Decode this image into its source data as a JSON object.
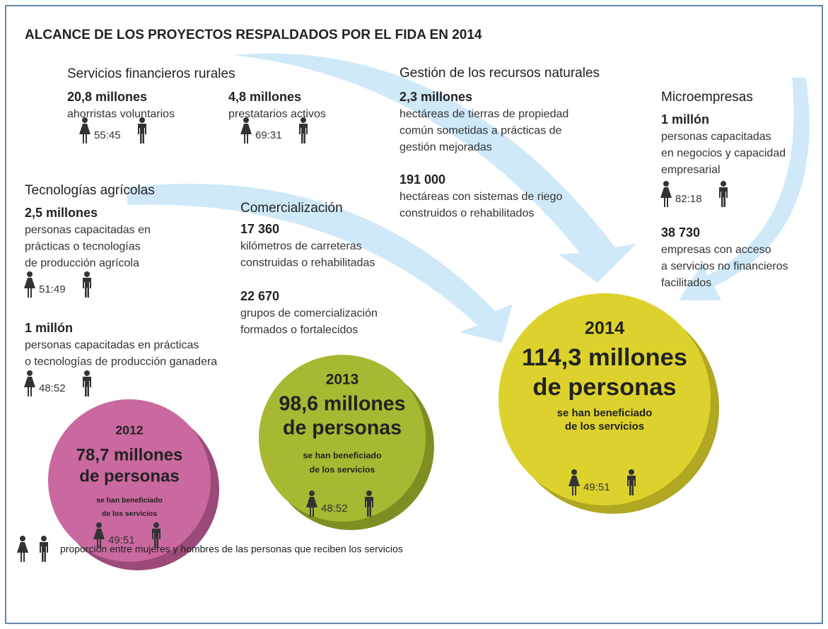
{
  "title": "ALCANCE DE LOS PROYECTOS RESPALDADOS POR EL FIDA EN 2014",
  "sections": [
    {
      "heading": "Servicios financieros rurales",
      "items": [
        {
          "figure": "20,8 millones",
          "description": [
            "ahorristas voluntarios"
          ],
          "ratio": "55:45"
        },
        {
          "figure": "4,8 millones",
          "description": [
            "prestatarios activos"
          ],
          "ratio": "69:31"
        }
      ]
    },
    {
      "heading": "Gestión de los recursos naturales",
      "items": [
        {
          "figure": "2,3 millones",
          "description": [
            "hectáreas de tierras de propiedad",
            "común sometidas a prácticas de",
            "gestión mejoradas"
          ]
        },
        {
          "figure": "191 000",
          "description": [
            "hectáreas con sistemas de riego",
            "construidos o rehabilitados"
          ]
        }
      ]
    },
    {
      "heading": "Microempresas",
      "items": [
        {
          "figure": "1 millón",
          "description": [
            "personas capacitadas",
            "en negocios y capacidad",
            "empresarial"
          ],
          "ratio": "82:18"
        },
        {
          "figure": "38 730",
          "description": [
            "empresas con acceso",
            "a servicios no financieros",
            "facilitados"
          ]
        }
      ]
    },
    {
      "heading": "Tecnologías agrícolas",
      "items": [
        {
          "figure": "2,5 millones",
          "description": [
            "personas capacitadas en",
            "prácticas o tecnologías",
            "de producción agrícola"
          ],
          "ratio": "51:49"
        },
        {
          "figure": "1 millón",
          "description": [
            "personas capacitadas en prácticas",
            "o tecnologías de producción ganadera"
          ],
          "ratio": "48:52"
        }
      ]
    },
    {
      "heading": "Comercialización",
      "items": [
        {
          "figure": "17 360",
          "description": [
            "kilómetros de carreteras",
            "construidas o rehabilitadas"
          ]
        },
        {
          "figure": "22 670",
          "description": [
            "grupos de comercialización",
            "formados o fortalecidos"
          ]
        }
      ]
    }
  ],
  "circles": [
    {
      "year": "2012",
      "total": [
        "78,7 millones",
        "de personas"
      ],
      "note": [
        "se han beneficiado",
        "de los servicios"
      ],
      "ratio": "49:51"
    },
    {
      "year": "2013",
      "total": [
        "98,6 millones",
        "de personas"
      ],
      "note": [
        "se han beneficiado",
        "de los servicios"
      ],
      "ratio": "48:52"
    },
    {
      "year": "2014",
      "total": [
        "114,3 millones",
        "de personas"
      ],
      "note": [
        "se han beneficiado",
        "de los servicios"
      ],
      "ratio": "49:51"
    }
  ],
  "legend": "proporción entre mujeres y hombres de las personas que reciben los servicios"
}
